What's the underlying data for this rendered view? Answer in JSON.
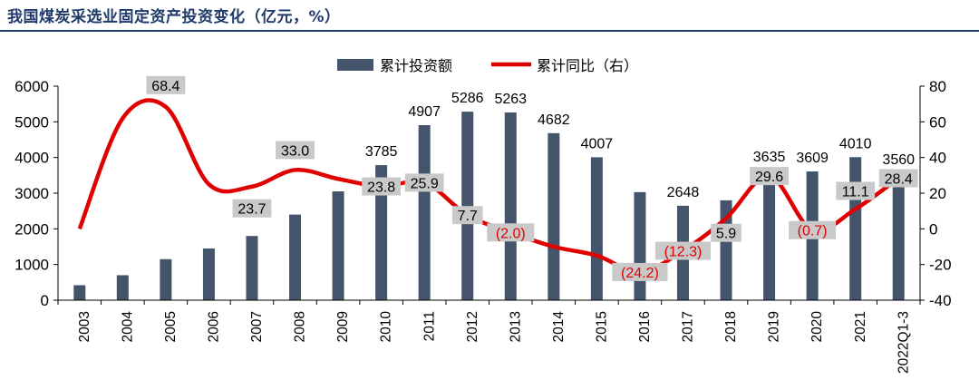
{
  "title": "我国煤炭采选业固定资产投资变化（亿元，%）",
  "colors": {
    "bar": "#44546a",
    "line": "#e00000",
    "label_box": "#c9c9c9",
    "title": "#1f3a6b"
  },
  "chart_data": {
    "type": "bar",
    "categories": [
      "2003",
      "2004",
      "2005",
      "2006",
      "2007",
      "2008",
      "2009",
      "2010",
      "2011",
      "2012",
      "2013",
      "2014",
      "2015",
      "2016",
      "2017",
      "2018",
      "2019",
      "2020",
      "2021",
      "2022Q1-3"
    ],
    "series": [
      {
        "name": "累计投资额",
        "type": "bar",
        "axis": "left",
        "values": [
          420,
          700,
          1150,
          1450,
          1800,
          2400,
          3050,
          3785,
          4907,
          5286,
          5263,
          4682,
          4007,
          3030,
          2648,
          2800,
          3635,
          3609,
          4010,
          3560
        ]
      },
      {
        "name": "累计同比（右）",
        "type": "line",
        "axis": "right",
        "values": [
          0,
          62,
          68.4,
          25,
          23.7,
          33.0,
          28,
          23.8,
          25.9,
          7.7,
          -2.0,
          -10,
          -15,
          -24.2,
          -12.3,
          5.9,
          29.6,
          -0.7,
          11.1,
          28.4
        ]
      }
    ],
    "bar_labels": [
      {
        "index": 7,
        "text": "3785"
      },
      {
        "index": 8,
        "text": "4907"
      },
      {
        "index": 9,
        "text": "5286"
      },
      {
        "index": 10,
        "text": "5263"
      },
      {
        "index": 11,
        "text": "4682"
      },
      {
        "index": 12,
        "text": "4007"
      },
      {
        "index": 14,
        "text": "2648"
      },
      {
        "index": 16,
        "text": "3635"
      },
      {
        "index": 17,
        "text": "3609"
      },
      {
        "index": 18,
        "text": "4010"
      },
      {
        "index": 19,
        "text": "3560"
      }
    ],
    "line_labels": [
      {
        "index": 2,
        "text": "68.4",
        "negative": false
      },
      {
        "index": 4,
        "text": "23.7",
        "negative": false
      },
      {
        "index": 5,
        "text": "33.0",
        "negative": false
      },
      {
        "index": 7,
        "text": "23.8",
        "negative": false
      },
      {
        "index": 8,
        "text": "25.9",
        "negative": false
      },
      {
        "index": 9,
        "text": "7.7",
        "negative": false
      },
      {
        "index": 10,
        "text": "(2.0)",
        "negative": true
      },
      {
        "index": 13,
        "text": "(24.2)",
        "negative": true
      },
      {
        "index": 14,
        "text": "(12.3)",
        "negative": true
      },
      {
        "index": 15,
        "text": "5.9",
        "negative": false
      },
      {
        "index": 16,
        "text": "29.6",
        "negative": false
      },
      {
        "index": 17,
        "text": "(0.7)",
        "negative": true
      },
      {
        "index": 18,
        "text": "11.1",
        "negative": false
      },
      {
        "index": 19,
        "text": "28.4",
        "negative": false
      }
    ],
    "y_left": {
      "min": 0,
      "max": 6000,
      "ticks": [
        "0",
        "1000",
        "2000",
        "3000",
        "4000",
        "5000",
        "6000"
      ]
    },
    "y_right": {
      "min": -40,
      "max": 80,
      "ticks": [
        "-40",
        "-20",
        "0",
        "20",
        "40",
        "60",
        "80"
      ]
    },
    "legend_position": "top-center",
    "grid": false
  }
}
